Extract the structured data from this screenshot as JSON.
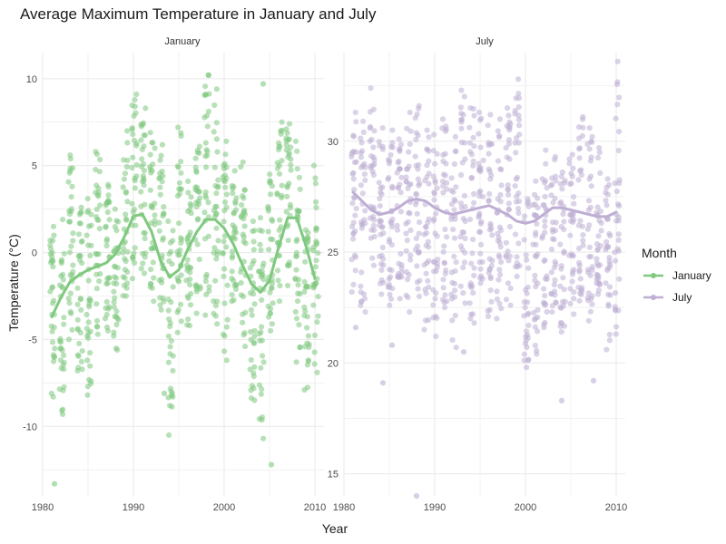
{
  "chart_data": {
    "type": "scatter",
    "title": "Average Maximum Temperature in January and July",
    "xlabel": "Year",
    "ylabel": "Temperature (°C)",
    "legend": {
      "title": "Month",
      "placement": "right"
    },
    "grid": true,
    "xlim": [
      1980,
      2011
    ],
    "panels": [
      {
        "name": "January",
        "color": "#7fc97f",
        "ylim": [
          -14,
          11.5
        ],
        "y_ticks": [
          -10,
          -5,
          0,
          5,
          10
        ],
        "x_ticks": [
          1980,
          1990,
          2000,
          2010
        ],
        "point_ranges": [
          {
            "x": 1981,
            "min": -8.3,
            "max": 1.5
          },
          {
            "x": 1982,
            "min": -9.3,
            "max": 1.9
          },
          {
            "x": 1983,
            "min": -5.0,
            "max": 5.6
          },
          {
            "x": 1984,
            "min": -6.8,
            "max": 2.6
          },
          {
            "x": 1985,
            "min": -8.2,
            "max": 3.1
          },
          {
            "x": 1986,
            "min": -4.7,
            "max": 5.8
          },
          {
            "x": 1987,
            "min": -4.5,
            "max": 3.9
          },
          {
            "x": 1988,
            "min": -5.6,
            "max": 2.5
          },
          {
            "x": 1989,
            "min": -2.5,
            "max": 7.0
          },
          {
            "x": 1990,
            "min": -1.5,
            "max": 9.1
          },
          {
            "x": 1991,
            "min": -1.2,
            "max": 8.3
          },
          {
            "x": 1992,
            "min": -2.8,
            "max": 6.9
          },
          {
            "x": 1993,
            "min": -3.3,
            "max": 6.2
          },
          {
            "x": 1994,
            "min": -10.5,
            "max": 1.8
          },
          {
            "x": 1995,
            "min": -4.6,
            "max": 7.2
          },
          {
            "x": 1996,
            "min": -4.2,
            "max": 4.1
          },
          {
            "x": 1997,
            "min": -3.5,
            "max": 6.1
          },
          {
            "x": 1998,
            "min": -3.6,
            "max": 10.2
          },
          {
            "x": 1999,
            "min": -4.1,
            "max": 9.4
          },
          {
            "x": 2000,
            "min": -6.2,
            "max": 6.4
          },
          {
            "x": 2001,
            "min": -2.8,
            "max": 4.7
          },
          {
            "x": 2002,
            "min": -5.4,
            "max": 5.2
          },
          {
            "x": 2003,
            "min": -8.5,
            "max": 1.8
          },
          {
            "x": 2004,
            "min": -10.7,
            "max": 2.0
          },
          {
            "x": 2005,
            "min": -4.5,
            "max": 4.5
          },
          {
            "x": 2006,
            "min": -2.8,
            "max": 7.5
          },
          {
            "x": 2007,
            "min": -1.9,
            "max": 7.4
          },
          {
            "x": 2008,
            "min": -6.3,
            "max": 6.4
          },
          {
            "x": 2009,
            "min": -7.9,
            "max": 1.3
          },
          {
            "x": 2010,
            "min": -6.9,
            "max": 5.0
          }
        ],
        "outliers": [
          {
            "x": 1981.3,
            "y": -13.3
          },
          {
            "x": 1998.3,
            "y": 10.2
          },
          {
            "x": 2004.3,
            "y": 9.7
          },
          {
            "x": 2005.2,
            "y": -12.2
          },
          {
            "x": 1993.4,
            "y": -8.1
          }
        ],
        "trend": {
          "x": [
            1981,
            1982,
            1983,
            1984,
            1985,
            1986,
            1987,
            1988,
            1989,
            1990,
            1991,
            1992,
            1993,
            1994,
            1995,
            1996,
            1997,
            1998,
            1999,
            2000,
            2001,
            2002,
            2003,
            2004,
            2005,
            2006,
            2007,
            2008,
            2009,
            2010
          ],
          "y": [
            -3.7,
            -2.6,
            -1.7,
            -1.3,
            -1.0,
            -0.8,
            -0.6,
            -0.1,
            0.9,
            2.1,
            2.2,
            1.2,
            -0.5,
            -1.4,
            -1.0,
            0.2,
            1.2,
            1.9,
            1.9,
            1.4,
            0.5,
            -0.7,
            -1.8,
            -2.3,
            -1.6,
            0.3,
            2.0,
            2.0,
            0.4,
            -1.5
          ]
        }
      },
      {
        "name": "July",
        "color": "#beaed4",
        "ylim": [
          14,
          34
        ],
        "y_ticks": [
          15,
          20,
          25,
          30
        ],
        "x_ticks": [
          1980,
          1990,
          2000,
          2010
        ],
        "point_ranges": [
          {
            "x": 1981,
            "min": 23.2,
            "max": 31.3
          },
          {
            "x": 1982,
            "min": 22.3,
            "max": 30.9
          },
          {
            "x": 1983,
            "min": 24.4,
            "max": 32.4
          },
          {
            "x": 1984,
            "min": 23.1,
            "max": 30.6
          },
          {
            "x": 1985,
            "min": 22.6,
            "max": 30.5
          },
          {
            "x": 1986,
            "min": 22.9,
            "max": 30.1
          },
          {
            "x": 1987,
            "min": 22.3,
            "max": 31.3
          },
          {
            "x": 1988,
            "min": 23.0,
            "max": 31.6
          },
          {
            "x": 1989,
            "min": 21.5,
            "max": 30.5
          },
          {
            "x": 1990,
            "min": 21.2,
            "max": 30.3
          },
          {
            "x": 1991,
            "min": 22.5,
            "max": 31.0
          },
          {
            "x": 1992,
            "min": 20.7,
            "max": 30.2
          },
          {
            "x": 1993,
            "min": 22.7,
            "max": 32.3
          },
          {
            "x": 1994,
            "min": 21.8,
            "max": 31.5
          },
          {
            "x": 1995,
            "min": 23.6,
            "max": 31.3
          },
          {
            "x": 1996,
            "min": 22.1,
            "max": 31.2
          },
          {
            "x": 1997,
            "min": 22.0,
            "max": 31.0
          },
          {
            "x": 1998,
            "min": 22.6,
            "max": 31.5
          },
          {
            "x": 1999,
            "min": 23.9,
            "max": 32.8
          },
          {
            "x": 2000,
            "min": 19.8,
            "max": 27.4
          },
          {
            "x": 2001,
            "min": 20.4,
            "max": 28.2
          },
          {
            "x": 2002,
            "min": 21.6,
            "max": 29.6
          },
          {
            "x": 2003,
            "min": 22.3,
            "max": 29.3
          },
          {
            "x": 2004,
            "min": 21.4,
            "max": 28.6
          },
          {
            "x": 2005,
            "min": 22.2,
            "max": 29.4
          },
          {
            "x": 2006,
            "min": 22.8,
            "max": 31.1
          },
          {
            "x": 2007,
            "min": 21.9,
            "max": 30.6
          },
          {
            "x": 2008,
            "min": 23.1,
            "max": 29.7
          },
          {
            "x": 2009,
            "min": 20.6,
            "max": 28.3
          },
          {
            "x": 2010,
            "min": 21.3,
            "max": 33.6
          }
        ],
        "outliers": [
          {
            "x": 1981.3,
            "y": 21.6
          },
          {
            "x": 1984.3,
            "y": 19.1
          },
          {
            "x": 1985.3,
            "y": 20.8
          },
          {
            "x": 1988.0,
            "y": 14.0
          },
          {
            "x": 1993.2,
            "y": 20.5
          },
          {
            "x": 2004.0,
            "y": 18.3
          },
          {
            "x": 2007.5,
            "y": 19.2
          }
        ],
        "trend": {
          "x": [
            1981,
            1982,
            1983,
            1984,
            1985,
            1986,
            1987,
            1988,
            1989,
            1990,
            1991,
            1992,
            1993,
            1994,
            1995,
            1996,
            1997,
            1998,
            1999,
            2000,
            2001,
            2002,
            2003,
            2004,
            2005,
            2006,
            2007,
            2008,
            2009,
            2010
          ],
          "y": [
            27.7,
            27.3,
            26.9,
            26.7,
            26.8,
            27.0,
            27.3,
            27.4,
            27.3,
            27.0,
            26.8,
            26.7,
            26.8,
            26.9,
            27.0,
            27.1,
            26.9,
            26.7,
            26.4,
            26.3,
            26.4,
            26.7,
            27.0,
            27.0,
            26.9,
            26.8,
            26.7,
            26.6,
            26.6,
            26.8
          ]
        }
      }
    ]
  }
}
